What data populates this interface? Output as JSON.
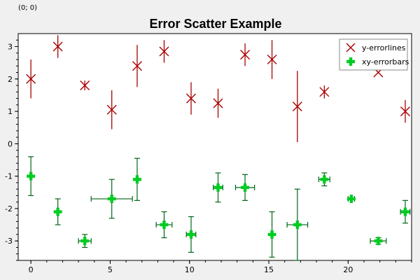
{
  "coordinate_readout": "(0; 0)",
  "chart_data": {
    "type": "scatter",
    "title": "Error Scatter Example",
    "xlabel": "",
    "ylabel": "",
    "xlim": [
      -0.8,
      24
    ],
    "ylim": [
      -3.6,
      3.4
    ],
    "xticks": [
      0,
      5,
      10,
      15,
      20
    ],
    "yticks": [
      -3,
      -2,
      -1,
      0,
      1,
      2,
      3
    ],
    "grid": false,
    "legend_position": "top-right",
    "series": [
      {
        "name": "y-errorlines",
        "color": "#a80000",
        "marker": "cross-icon",
        "points": [
          {
            "x": 0.0,
            "y": 2.0,
            "yerr": 0.6
          },
          {
            "x": 1.7,
            "y": 3.0,
            "yerr": 0.35
          },
          {
            "x": 3.4,
            "y": 1.8,
            "yerr": 0.15
          },
          {
            "x": 5.1,
            "y": 1.05,
            "yerr": 0.6
          },
          {
            "x": 6.7,
            "y": 2.4,
            "yerr": 0.65
          },
          {
            "x": 8.4,
            "y": 2.85,
            "yerr": 0.35
          },
          {
            "x": 10.1,
            "y": 1.4,
            "yerr": 0.5
          },
          {
            "x": 11.8,
            "y": 1.25,
            "yerr": 0.45
          },
          {
            "x": 13.5,
            "y": 2.75,
            "yerr": 0.35
          },
          {
            "x": 15.2,
            "y": 2.6,
            "yerr": 0.6
          },
          {
            "x": 16.8,
            "y": 1.15,
            "yerr": 1.1
          },
          {
            "x": 18.5,
            "y": 1.6,
            "yerr": 0.2
          },
          {
            "x": 21.9,
            "y": 2.2,
            "yerr": 0.0
          },
          {
            "x": 23.6,
            "y": 1.0,
            "yerr": 0.35
          }
        ]
      },
      {
        "name": "xy-errorbars",
        "color": "#00cc22",
        "marker": "plus-icon",
        "points": [
          {
            "x": 0.0,
            "y": -1.0,
            "xerr": 0.0,
            "yerr": 0.6
          },
          {
            "x": 1.7,
            "y": -2.1,
            "xerr": 0.0,
            "yerr": 0.4
          },
          {
            "x": 3.4,
            "y": -3.0,
            "xerr": 0.4,
            "yerr": 0.2
          },
          {
            "x": 5.1,
            "y": -1.7,
            "xerr": 1.3,
            "yerr": 0.6
          },
          {
            "x": 6.7,
            "y": -1.1,
            "xerr": 0.0,
            "yerr": 0.65
          },
          {
            "x": 8.4,
            "y": -2.5,
            "xerr": 0.5,
            "yerr": 0.4
          },
          {
            "x": 10.1,
            "y": -2.8,
            "xerr": 0.3,
            "yerr": 0.55
          },
          {
            "x": 11.8,
            "y": -1.35,
            "xerr": 0.3,
            "yerr": 0.45
          },
          {
            "x": 13.5,
            "y": -1.35,
            "xerr": 0.6,
            "yerr": 0.4
          },
          {
            "x": 15.2,
            "y": -2.8,
            "xerr": 0.0,
            "yerr": 0.7
          },
          {
            "x": 16.8,
            "y": -2.5,
            "xerr": 0.65,
            "yerr": 1.1
          },
          {
            "x": 18.5,
            "y": -1.1,
            "xerr": 0.35,
            "yerr": 0.2
          },
          {
            "x": 20.2,
            "y": -1.7,
            "xerr": 0.2,
            "yerr": 0.0
          },
          {
            "x": 21.9,
            "y": -3.0,
            "xerr": 0.5,
            "yerr": 0.1
          },
          {
            "x": 23.6,
            "y": -2.1,
            "xerr": 0.3,
            "yerr": 0.35
          }
        ]
      }
    ]
  }
}
